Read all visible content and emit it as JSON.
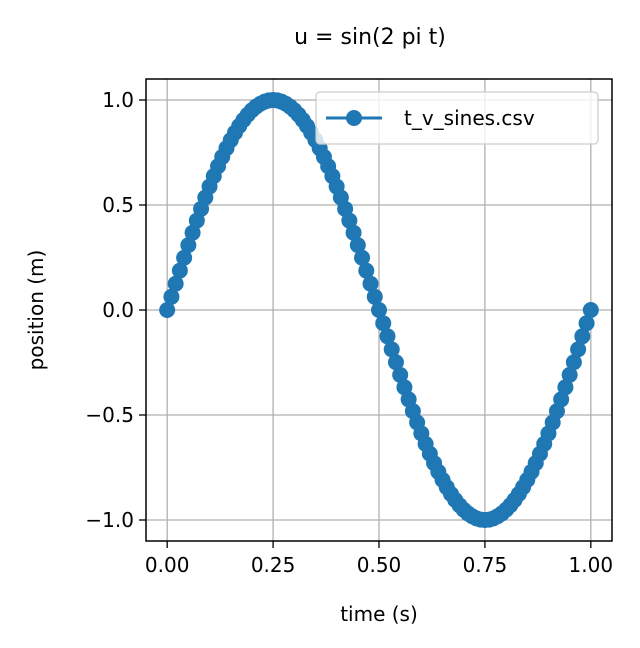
{
  "chart_data": {
    "type": "line",
    "title": "u = sin(2 pi t)",
    "xlabel": "time (s)",
    "ylabel": "position (m)",
    "xlim": [
      -0.05,
      1.05
    ],
    "ylim": [
      -1.1,
      1.1
    ],
    "xticks": [
      0.0,
      0.25,
      0.5,
      0.75,
      1.0
    ],
    "xtick_labels": [
      "0.00",
      "0.25",
      "0.50",
      "0.75",
      "1.00"
    ],
    "yticks": [
      -1.0,
      -0.5,
      0.0,
      0.5,
      1.0
    ],
    "ytick_labels": [
      "−1.0",
      "−0.5",
      "0.0",
      "0.5",
      "1.0"
    ],
    "grid": true,
    "legend_position": "top-right",
    "series": [
      {
        "name": "t_v_sines.csv",
        "marker": "circle",
        "x": [
          0.0,
          0.01,
          0.02,
          0.03,
          0.04,
          0.05,
          0.06,
          0.07,
          0.08,
          0.09,
          0.1,
          0.11,
          0.12,
          0.13,
          0.14,
          0.15,
          0.16,
          0.17,
          0.18,
          0.19,
          0.2,
          0.21,
          0.22,
          0.23,
          0.24,
          0.25,
          0.26,
          0.27,
          0.28,
          0.29,
          0.3,
          0.31,
          0.32,
          0.33,
          0.34,
          0.35,
          0.36,
          0.37,
          0.38,
          0.39,
          0.4,
          0.41,
          0.42,
          0.43,
          0.44,
          0.45,
          0.46,
          0.47,
          0.48,
          0.49,
          0.5,
          0.51,
          0.52,
          0.53,
          0.54,
          0.55,
          0.56,
          0.57,
          0.58,
          0.59,
          0.6,
          0.61,
          0.62,
          0.63,
          0.64,
          0.65,
          0.66,
          0.67,
          0.68,
          0.69,
          0.7,
          0.71,
          0.72,
          0.73,
          0.74,
          0.75,
          0.76,
          0.77,
          0.78,
          0.79,
          0.8,
          0.81,
          0.82,
          0.83,
          0.84,
          0.85,
          0.86,
          0.87,
          0.88,
          0.89,
          0.9,
          0.91,
          0.92,
          0.93,
          0.94,
          0.95,
          0.96,
          0.97,
          0.98,
          0.99,
          1.0
        ],
        "y": [
          0.0,
          0.0628,
          0.1253,
          0.1874,
          0.2487,
          0.309,
          0.3681,
          0.4258,
          0.4818,
          0.5358,
          0.5878,
          0.6374,
          0.6845,
          0.729,
          0.7705,
          0.809,
          0.8443,
          0.8763,
          0.9048,
          0.9298,
          0.9511,
          0.9686,
          0.9823,
          0.9921,
          0.998,
          1.0,
          0.998,
          0.9921,
          0.9823,
          0.9686,
          0.9511,
          0.9298,
          0.9048,
          0.8763,
          0.8443,
          0.809,
          0.7705,
          0.729,
          0.6845,
          0.6374,
          0.5878,
          0.5358,
          0.4818,
          0.4258,
          0.3681,
          0.309,
          0.2487,
          0.1874,
          0.1253,
          0.0628,
          0.0,
          -0.0628,
          -0.1253,
          -0.1874,
          -0.2487,
          -0.309,
          -0.3681,
          -0.4258,
          -0.4818,
          -0.5358,
          -0.5878,
          -0.6374,
          -0.6845,
          -0.729,
          -0.7705,
          -0.809,
          -0.8443,
          -0.8763,
          -0.9048,
          -0.9298,
          -0.9511,
          -0.9686,
          -0.9823,
          -0.9921,
          -0.998,
          -1.0,
          -0.998,
          -0.9921,
          -0.9823,
          -0.9686,
          -0.9511,
          -0.9298,
          -0.9048,
          -0.8763,
          -0.8443,
          -0.809,
          -0.7705,
          -0.729,
          -0.6845,
          -0.6374,
          -0.5878,
          -0.5358,
          -0.4818,
          -0.4258,
          -0.3681,
          -0.309,
          -0.2487,
          -0.1874,
          -0.1253,
          -0.0628,
          0.0
        ]
      }
    ],
    "colors": {
      "series": "#1f77b4",
      "grid": "#b0b0b0",
      "axis": "#000000",
      "legend_border": "#cccccc"
    }
  }
}
